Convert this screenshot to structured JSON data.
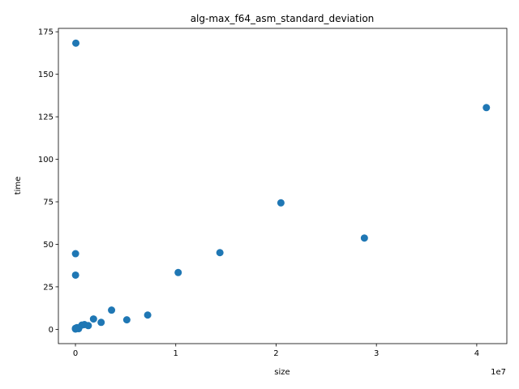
{
  "chart_data": {
    "type": "scatter",
    "title": "alg-max_f64_asm_standard_deviation",
    "xlabel": "size",
    "ylabel": "time",
    "x_offset_label": "1e7",
    "xlim": [
      -1700000.0,
      43000000.0
    ],
    "ylim": [
      -8.4,
      177.0
    ],
    "x_ticks": [
      0,
      10000000,
      20000000,
      30000000,
      40000000
    ],
    "x_tick_labels": [
      "0",
      "1",
      "2",
      "3",
      "4"
    ],
    "y_ticks": [
      0,
      25,
      50,
      75,
      100,
      125,
      150,
      175
    ],
    "y_tick_labels": [
      "0",
      "25",
      "50",
      "75",
      "100",
      "125",
      "150",
      "175"
    ],
    "grid": false,
    "marker_color": "#1f77b4",
    "series": [
      {
        "x": [
          40000,
          8000,
          10000,
          20000,
          40000,
          80000,
          160000,
          320000,
          640000,
          900000,
          1280000,
          1800000,
          2560000,
          3600000,
          5120000,
          7200000,
          10240000,
          14400000,
          20480000,
          28800000,
          40960000,
          5000,
          2000
        ],
        "y": [
          168.3,
          44.5,
          31.9,
          0.3,
          0.5,
          0.8,
          1.0,
          0.4,
          2.5,
          2.8,
          2.2,
          6.1,
          4.1,
          11.3,
          5.6,
          8.4,
          33.4,
          45.1,
          74.4,
          53.7,
          130.4,
          0.6,
          0.2
        ]
      }
    ]
  }
}
